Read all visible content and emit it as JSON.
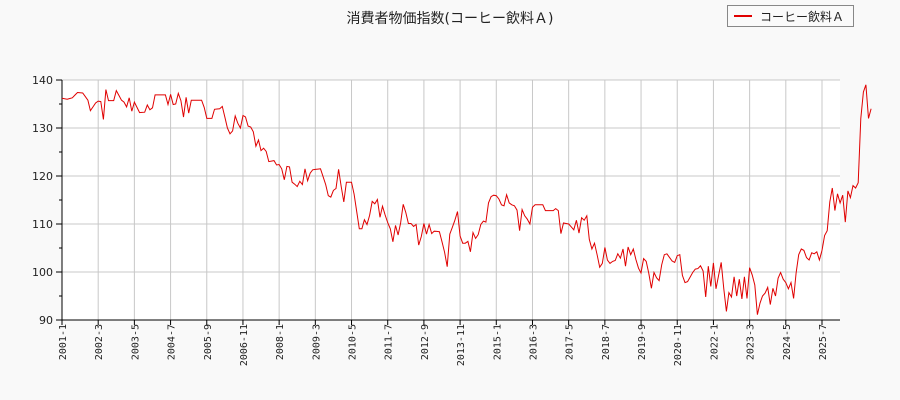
{
  "chart_data": {
    "type": "line",
    "title": "消費者物価指数(コーヒー飲料Ａ)",
    "xlabel": "",
    "ylabel": "",
    "ylim": [
      90,
      140
    ],
    "yticks": [
      90,
      100,
      110,
      120,
      130,
      140
    ],
    "xticks": [
      "2001-1",
      "2002-3",
      "2003-5",
      "2004-7",
      "2005-9",
      "2006-11",
      "2008-1",
      "2009-3",
      "2010-5",
      "2011-7",
      "2012-9",
      "2013-11",
      "2015-1",
      "2016-3",
      "2017-5",
      "2018-7",
      "2019-9",
      "2020-11",
      "2022-1",
      "2023-3",
      "2024-5",
      "2025-7"
    ],
    "grid": true,
    "legend_position": "upper right",
    "series": [
      {
        "name": "コーヒー飲料Ａ",
        "color": "#e00000",
        "x_start": "2001-1",
        "frequency": "monthly",
        "anchors": [
          [
            0,
            136.2
          ],
          [
            2,
            136.0
          ],
          [
            4,
            136.3
          ],
          [
            6,
            137.4
          ],
          [
            8,
            137.3
          ],
          [
            10,
            135.8
          ],
          [
            11,
            133.6
          ],
          [
            13,
            135.2
          ],
          [
            14,
            135.6
          ],
          [
            15,
            135.5
          ],
          [
            16,
            131.8
          ],
          [
            17,
            138.0
          ],
          [
            18,
            135.7
          ],
          [
            20,
            135.7
          ],
          [
            21,
            137.8
          ],
          [
            23,
            135.8
          ],
          [
            24,
            135.4
          ],
          [
            25,
            134.4
          ],
          [
            26,
            136.3
          ],
          [
            27,
            133.5
          ],
          [
            28,
            135.4
          ],
          [
            30,
            133.2
          ],
          [
            32,
            133.3
          ],
          [
            33,
            134.8
          ],
          [
            34,
            133.8
          ],
          [
            35,
            134.2
          ],
          [
            36,
            136.9
          ],
          [
            40,
            136.9
          ],
          [
            41,
            134.9
          ],
          [
            42,
            137.0
          ],
          [
            43,
            134.9
          ],
          [
            44,
            135.0
          ],
          [
            45,
            137.2
          ],
          [
            46,
            135.7
          ],
          [
            47,
            132.3
          ],
          [
            48,
            136.4
          ],
          [
            49,
            133.1
          ],
          [
            50,
            135.8
          ],
          [
            54,
            135.8
          ],
          [
            55,
            134.3
          ],
          [
            56,
            132.0
          ],
          [
            58,
            132.0
          ],
          [
            59,
            133.9
          ],
          [
            61,
            134.0
          ],
          [
            62,
            134.5
          ],
          [
            64,
            130.0
          ],
          [
            65,
            128.8
          ],
          [
            66,
            129.4
          ],
          [
            67,
            132.5
          ],
          [
            68,
            131.0
          ],
          [
            69,
            130.0
          ],
          [
            70,
            132.6
          ],
          [
            71,
            132.3
          ],
          [
            72,
            130.4
          ],
          [
            73,
            130.2
          ],
          [
            74,
            129.2
          ],
          [
            75,
            126.2
          ],
          [
            76,
            127.5
          ],
          [
            77,
            125.3
          ],
          [
            78,
            125.8
          ],
          [
            79,
            125.1
          ],
          [
            80,
            123.0
          ],
          [
            82,
            123.2
          ],
          [
            83,
            122.3
          ],
          [
            84,
            122.4
          ],
          [
            85,
            121.5
          ],
          [
            86,
            119.2
          ],
          [
            87,
            122.0
          ],
          [
            88,
            121.9
          ],
          [
            89,
            118.7
          ],
          [
            90,
            118.3
          ],
          [
            91,
            117.8
          ],
          [
            92,
            118.9
          ],
          [
            93,
            118.2
          ],
          [
            94,
            121.5
          ],
          [
            95,
            119.0
          ],
          [
            96,
            120.6
          ],
          [
            97,
            121.3
          ],
          [
            100,
            121.5
          ],
          [
            102,
            118.2
          ],
          [
            103,
            115.9
          ],
          [
            104,
            115.6
          ],
          [
            105,
            117.0
          ],
          [
            106,
            117.4
          ],
          [
            107,
            121.4
          ],
          [
            108,
            117.8
          ],
          [
            109,
            114.6
          ],
          [
            110,
            118.7
          ],
          [
            112,
            118.7
          ],
          [
            113,
            116.2
          ],
          [
            114,
            112.6
          ],
          [
            115,
            109.0
          ],
          [
            116,
            109.0
          ],
          [
            117,
            110.9
          ],
          [
            118,
            109.9
          ],
          [
            119,
            111.8
          ],
          [
            120,
            114.7
          ],
          [
            121,
            114.2
          ],
          [
            122,
            115.1
          ],
          [
            123,
            111.4
          ],
          [
            124,
            113.7
          ],
          [
            125,
            111.9
          ],
          [
            126,
            110.3
          ],
          [
            127,
            109.0
          ],
          [
            128,
            106.3
          ],
          [
            129,
            109.7
          ],
          [
            130,
            107.7
          ],
          [
            131,
            110.2
          ],
          [
            132,
            114.1
          ],
          [
            133,
            112.4
          ],
          [
            134,
            110.1
          ],
          [
            135,
            110.1
          ],
          [
            136,
            109.5
          ],
          [
            137,
            109.9
          ],
          [
            138,
            105.6
          ],
          [
            139,
            107.4
          ],
          [
            140,
            110.1
          ],
          [
            141,
            107.9
          ],
          [
            142,
            109.9
          ],
          [
            143,
            108.0
          ],
          [
            144,
            108.5
          ],
          [
            146,
            108.4
          ],
          [
            147,
            106.3
          ],
          [
            148,
            104.1
          ],
          [
            149,
            101.1
          ],
          [
            150,
            107.9
          ],
          [
            151,
            109.3
          ],
          [
            152,
            110.8
          ],
          [
            153,
            112.6
          ],
          [
            154,
            107.5
          ],
          [
            155,
            106.0
          ],
          [
            156,
            106.0
          ],
          [
            157,
            106.4
          ],
          [
            158,
            104.2
          ],
          [
            159,
            108.2
          ],
          [
            160,
            107.0
          ],
          [
            161,
            107.8
          ],
          [
            162,
            109.9
          ],
          [
            163,
            110.6
          ],
          [
            164,
            110.4
          ],
          [
            165,
            114.4
          ],
          [
            166,
            115.7
          ],
          [
            167,
            116.0
          ],
          [
            168,
            115.9
          ],
          [
            169,
            115.2
          ],
          [
            170,
            114.0
          ],
          [
            171,
            113.8
          ],
          [
            172,
            116.1
          ],
          [
            173,
            114.4
          ],
          [
            174,
            114.0
          ],
          [
            175,
            113.8
          ],
          [
            176,
            112.9
          ],
          [
            177,
            108.6
          ],
          [
            178,
            113.0
          ],
          [
            179,
            111.7
          ],
          [
            180,
            111.0
          ],
          [
            181,
            110.0
          ],
          [
            182,
            113.5
          ],
          [
            183,
            114.0
          ],
          [
            186,
            114.0
          ],
          [
            187,
            112.8
          ],
          [
            190,
            112.8
          ],
          [
            191,
            113.2
          ],
          [
            192,
            112.8
          ],
          [
            193,
            108.0
          ],
          [
            194,
            110.2
          ],
          [
            196,
            110.0
          ],
          [
            197,
            109.4
          ],
          [
            198,
            108.8
          ],
          [
            199,
            110.8
          ],
          [
            200,
            108.1
          ],
          [
            201,
            111.3
          ],
          [
            202,
            110.8
          ],
          [
            203,
            111.7
          ],
          [
            204,
            106.8
          ],
          [
            205,
            104.8
          ],
          [
            206,
            106.0
          ],
          [
            207,
            103.6
          ],
          [
            208,
            101.0
          ],
          [
            209,
            101.8
          ],
          [
            210,
            105.1
          ],
          [
            211,
            102.5
          ],
          [
            212,
            101.8
          ],
          [
            213,
            102.2
          ],
          [
            214,
            102.4
          ],
          [
            215,
            103.8
          ],
          [
            216,
            102.9
          ],
          [
            217,
            104.8
          ],
          [
            218,
            101.2
          ],
          [
            219,
            105.2
          ],
          [
            220,
            103.6
          ],
          [
            221,
            104.8
          ],
          [
            222,
            102.6
          ],
          [
            223,
            100.8
          ],
          [
            224,
            99.8
          ],
          [
            225,
            102.8
          ],
          [
            226,
            102.2
          ],
          [
            227,
            99.7
          ],
          [
            228,
            96.6
          ],
          [
            229,
            99.9
          ],
          [
            230,
            98.8
          ],
          [
            231,
            98.2
          ],
          [
            232,
            101.5
          ],
          [
            233,
            103.6
          ],
          [
            234,
            103.8
          ],
          [
            236,
            102.3
          ],
          [
            237,
            102.0
          ],
          [
            238,
            103.4
          ],
          [
            239,
            103.6
          ],
          [
            240,
            99.3
          ],
          [
            241,
            97.8
          ],
          [
            242,
            98.0
          ],
          [
            244,
            99.9
          ],
          [
            245,
            100.6
          ],
          [
            246,
            100.7
          ],
          [
            247,
            101.3
          ],
          [
            248,
            100.2
          ],
          [
            249,
            94.8
          ],
          [
            250,
            101.2
          ],
          [
            251,
            97.0
          ],
          [
            252,
            101.9
          ],
          [
            253,
            96.5
          ],
          [
            254,
            99.3
          ],
          [
            255,
            102.0
          ],
          [
            256,
            96.5
          ],
          [
            257,
            91.8
          ],
          [
            258,
            95.7
          ],
          [
            259,
            94.8
          ],
          [
            260,
            99.0
          ],
          [
            261,
            95.0
          ],
          [
            262,
            98.5
          ],
          [
            263,
            94.4
          ],
          [
            264,
            99.0
          ],
          [
            265,
            94.5
          ],
          [
            266,
            100.9
          ],
          [
            267,
            99.4
          ],
          [
            268,
            97.3
          ],
          [
            269,
            91.1
          ],
          [
            270,
            93.5
          ],
          [
            271,
            95.0
          ],
          [
            272,
            95.6
          ],
          [
            273,
            96.8
          ],
          [
            274,
            93.2
          ],
          [
            275,
            96.6
          ],
          [
            276,
            95.0
          ],
          [
            277,
            98.7
          ],
          [
            278,
            99.9
          ],
          [
            279,
            98.5
          ],
          [
            280,
            97.8
          ],
          [
            281,
            96.5
          ],
          [
            282,
            97.8
          ],
          [
            283,
            94.5
          ],
          [
            284,
            99.8
          ],
          [
            285,
            103.6
          ],
          [
            286,
            104.8
          ],
          [
            287,
            104.5
          ],
          [
            288,
            103.0
          ],
          [
            289,
            102.5
          ],
          [
            290,
            104.0
          ],
          [
            291,
            103.8
          ],
          [
            292,
            104.2
          ],
          [
            293,
            102.5
          ],
          [
            294,
            104.5
          ],
          [
            295,
            107.6
          ],
          [
            296,
            108.6
          ],
          [
            297,
            114.6
          ],
          [
            298,
            117.5
          ],
          [
            299,
            112.8
          ],
          [
            300,
            116.3
          ],
          [
            301,
            114.4
          ],
          [
            302,
            116.0
          ],
          [
            303,
            110.4
          ],
          [
            304,
            116.9
          ],
          [
            305,
            115.5
          ],
          [
            306,
            118.0
          ],
          [
            307,
            117.5
          ],
          [
            308,
            118.6
          ],
          [
            309,
            132.0
          ],
          [
            310,
            137.5
          ],
          [
            311,
            139.0
          ],
          [
            312,
            132.0
          ],
          [
            313,
            134.0
          ]
        ]
      }
    ]
  },
  "legend": {
    "label": "コーヒー飲料Ａ"
  }
}
